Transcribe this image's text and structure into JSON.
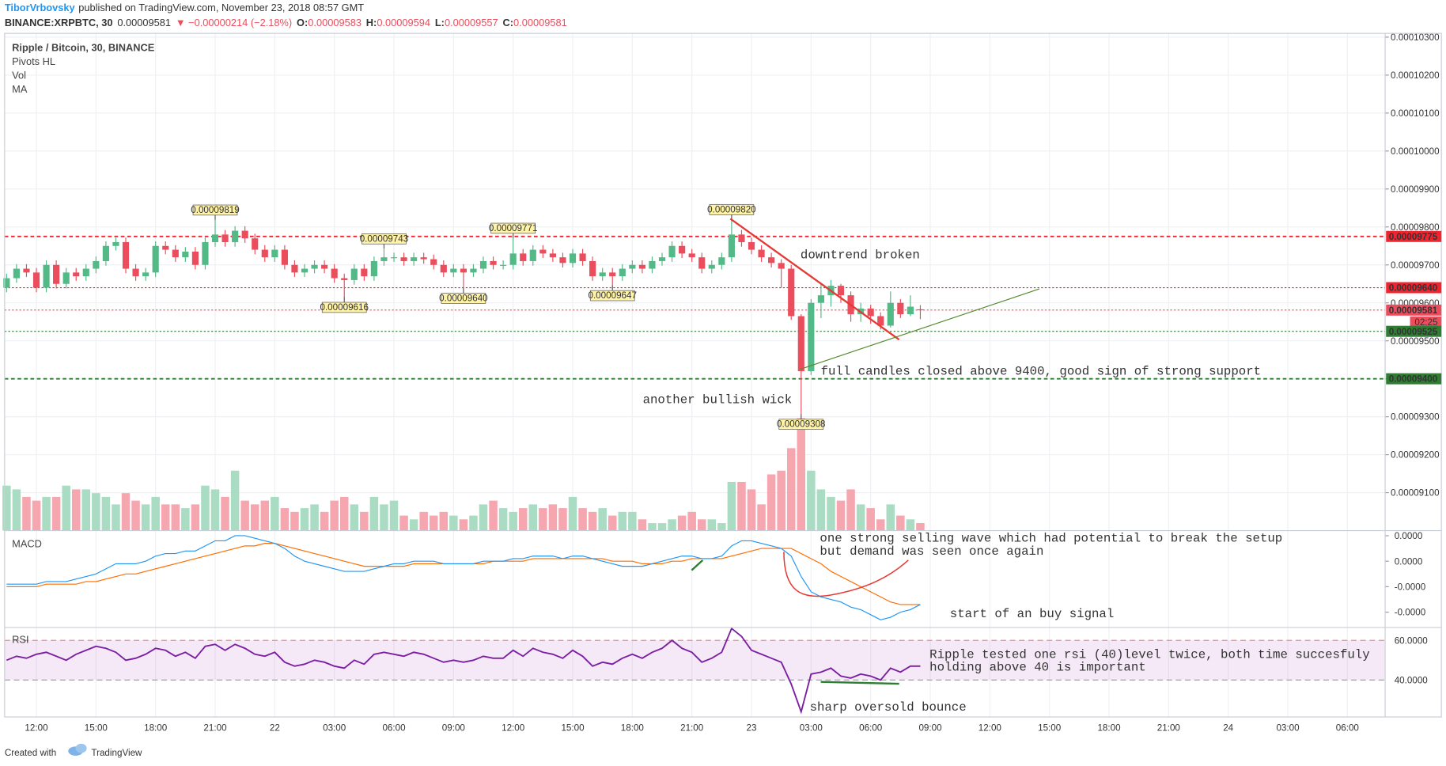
{
  "header": {
    "author": "TiborVrbovsky",
    "published": "published on TradingView.com, November 23, 2018 08:57 GMT",
    "symbol": "BINANCE:XRPBTC, 30",
    "last": "0.00009581",
    "change": "▼ −0.00000214 (−2.18%)",
    "o_key": "O:",
    "o": "0.00009583",
    "h_key": "H:",
    "h": "0.00009594",
    "l_key": "L:",
    "l": "0.00009557",
    "c_key": "C:",
    "c": "0.00009581"
  },
  "legend": [
    "Ripple / Bitcoin, 30, BINANCE",
    "Pivots HL",
    "Vol",
    "MA"
  ],
  "annotations": [
    "downtrend broken",
    "full candles closed above 9400, good sign of strong support",
    "another bullish wick",
    "one strong selling wave which had potential to break the setup",
    "but demand was seen once again",
    "start of an buy signal",
    "Ripple tested one rsi (40)level twice, both time succesfuly",
    "holding above 40 is important",
    "sharp oversold bounce"
  ],
  "footer": {
    "created": "Created with",
    "brand": "TradingView"
  },
  "chart_data": {
    "type": "candlestick",
    "xlim": [
      -0.2,
      138.8
    ],
    "xticks": [
      {
        "value": 3,
        "label": "12:00"
      },
      {
        "value": 9,
        "label": "15:00"
      },
      {
        "value": 15,
        "label": "18:00"
      },
      {
        "value": 21,
        "label": "21:00"
      },
      {
        "value": 27,
        "label": "22"
      },
      {
        "value": 33,
        "label": "03:00"
      },
      {
        "value": 39,
        "label": "06:00"
      },
      {
        "value": 45,
        "label": "09:00"
      },
      {
        "value": 51,
        "label": "12:00"
      },
      {
        "value": 57,
        "label": "15:00"
      },
      {
        "value": 63,
        "label": "18:00"
      },
      {
        "value": 69,
        "label": "21:00"
      },
      {
        "value": 75,
        "label": "23"
      },
      {
        "value": 81,
        "label": "03:00"
      },
      {
        "value": 87,
        "label": "06:00"
      },
      {
        "value": 93,
        "label": "09:00"
      },
      {
        "value": 99,
        "label": "12:00"
      },
      {
        "value": 105,
        "label": "15:00"
      },
      {
        "value": 111,
        "label": "18:00"
      },
      {
        "value": 117,
        "label": "21:00"
      },
      {
        "value": 123,
        "label": "24"
      },
      {
        "value": 129,
        "label": "03:00"
      },
      {
        "value": 135,
        "label": "06:00"
      }
    ],
    "ylim": [
      9e-05,
      0.0001031
    ],
    "yticks": [
      {
        "value": 0.000103,
        "label": "0.00010300"
      },
      {
        "value": 0.000102,
        "label": "0.00010200"
      },
      {
        "value": 0.000101,
        "label": "0.00010100"
      },
      {
        "value": 0.0001,
        "label": "0.00010000"
      },
      {
        "value": 9.9e-05,
        "label": "0.00009900"
      },
      {
        "value": 9.8e-05,
        "label": "0.00009800"
      },
      {
        "value": 9.7e-05,
        "label": "0.00009700"
      },
      {
        "value": 9.6e-05,
        "label": "0.00009600"
      },
      {
        "value": 9.5e-05,
        "label": "0.00009500"
      },
      {
        "value": 9.4e-05,
        "label": "0.00009400"
      },
      {
        "value": 9.3e-05,
        "label": "0.00009300"
      },
      {
        "value": 9.2e-05,
        "label": "0.00009200"
      },
      {
        "value": 9.1e-05,
        "label": "0.00009100"
      }
    ],
    "up_color": "#53b987",
    "down_color": "#eb4d5c",
    "open": [
      9.64e-05,
      9.665e-05,
      9.69e-05,
      9.68e-05,
      9.64e-05,
      9.7e-05,
      9.65e-05,
      9.68e-05,
      9.67e-05,
      9.69e-05,
      9.71e-05,
      9.75e-05,
      9.76e-05,
      9.69e-05,
      9.67e-05,
      9.68e-05,
      9.75e-05,
      9.74e-05,
      9.72e-05,
      9.735e-05,
      9.7e-05,
      9.76e-05,
      9.78e-05,
      9.76e-05,
      9.79e-05,
      9.77e-05,
      9.74e-05,
      9.72e-05,
      9.74e-05,
      9.7e-05,
      9.68e-05,
      9.69e-05,
      9.7e-05,
      9.69e-05,
      9.665e-05,
      9.66e-05,
      9.69e-05,
      9.67e-05,
      9.71e-05,
      9.72e-05,
      9.72e-05,
      9.71e-05,
      9.72e-05,
      9.715e-05,
      9.7e-05,
      9.68e-05,
      9.69e-05,
      9.68e-05,
      9.69e-05,
      9.71e-05,
      9.7e-05,
      9.7e-05,
      9.73e-05,
      9.71e-05,
      9.74e-05,
      9.73e-05,
      9.72e-05,
      9.705e-05,
      9.73e-05,
      9.71e-05,
      9.67e-05,
      9.68e-05,
      9.67e-05,
      9.69e-05,
      9.7e-05,
      9.69e-05,
      9.71e-05,
      9.72e-05,
      9.75e-05,
      9.73e-05,
      9.72e-05,
      9.69e-05,
      9.7e-05,
      9.72e-05,
      9.78e-05,
      9.76e-05,
      9.74e-05,
      9.72e-05,
      9.705e-05,
      9.69e-05,
      9.565e-05,
      9.42e-05,
      9.6e-05,
      9.62e-05,
      9.645e-05,
      9.62e-05,
      9.57e-05,
      9.585e-05,
      9.565e-05,
      9.54e-05,
      9.6e-05,
      9.57e-05,
      9.583e-05
    ],
    "high": [
      9.677e-05,
      9.702e-05,
      9.702e-05,
      9.692e-05,
      9.712e-05,
      9.712e-05,
      9.692e-05,
      9.692e-05,
      9.702e-05,
      9.722e-05,
      9.762e-05,
      9.772e-05,
      9.772e-05,
      9.702e-05,
      9.692e-05,
      9.762e-05,
      9.762e-05,
      9.752e-05,
      9.747e-05,
      9.747e-05,
      9.772e-05,
      9.819e-05,
      9.792e-05,
      9.802e-05,
      9.802e-05,
      9.782e-05,
      9.752e-05,
      9.752e-05,
      9.752e-05,
      9.712e-05,
      9.702e-05,
      9.712e-05,
      9.712e-05,
      9.702e-05,
      9.677e-05,
      9.702e-05,
      9.702e-05,
      9.722e-05,
      9.743e-05,
      9.732e-05,
      9.732e-05,
      9.732e-05,
      9.732e-05,
      9.727e-05,
      9.712e-05,
      9.702e-05,
      9.702e-05,
      9.702e-05,
      9.722e-05,
      9.722e-05,
      9.712e-05,
      9.771e-05,
      9.742e-05,
      9.752e-05,
      9.752e-05,
      9.742e-05,
      9.732e-05,
      9.742e-05,
      9.742e-05,
      9.722e-05,
      9.692e-05,
      9.692e-05,
      9.702e-05,
      9.712e-05,
      9.712e-05,
      9.722e-05,
      9.732e-05,
      9.762e-05,
      9.762e-05,
      9.742e-05,
      9.732e-05,
      9.712e-05,
      9.732e-05,
      9.82e-05,
      9.792e-05,
      9.772e-05,
      9.752e-05,
      9.732e-05,
      9.715e-05,
      9.7e-05,
      9.57e-05,
      9.61e-05,
      9.65e-05,
      9.66e-05,
      9.65e-05,
      9.63e-05,
      9.6e-05,
      9.595e-05,
      9.575e-05,
      9.63e-05,
      9.61e-05,
      9.62e-05,
      9.594e-05
    ],
    "low": [
      9.628e-05,
      9.653e-05,
      9.668e-05,
      9.628e-05,
      9.628e-05,
      9.638e-05,
      9.638e-05,
      9.658e-05,
      9.658e-05,
      9.678e-05,
      9.698e-05,
      9.738e-05,
      9.678e-05,
      9.658e-05,
      9.658e-05,
      9.668e-05,
      9.728e-05,
      9.708e-05,
      9.708e-05,
      9.688e-05,
      9.688e-05,
      9.748e-05,
      9.748e-05,
      9.748e-05,
      9.758e-05,
      9.728e-05,
      9.708e-05,
      9.708e-05,
      9.688e-05,
      9.668e-05,
      9.668e-05,
      9.678e-05,
      9.678e-05,
      9.653e-05,
      9.616e-05,
      9.648e-05,
      9.658e-05,
      9.658e-05,
      9.698e-05,
      9.708e-05,
      9.698e-05,
      9.698e-05,
      9.703e-05,
      9.688e-05,
      9.668e-05,
      9.668e-05,
      9.64e-05,
      9.668e-05,
      9.678e-05,
      9.688e-05,
      9.688e-05,
      9.688e-05,
      9.698e-05,
      9.698e-05,
      9.718e-05,
      9.708e-05,
      9.693e-05,
      9.693e-05,
      9.698e-05,
      9.658e-05,
      9.658e-05,
      9.647e-05,
      9.658e-05,
      9.678e-05,
      9.678e-05,
      9.678e-05,
      9.698e-05,
      9.708e-05,
      9.718e-05,
      9.708e-05,
      9.678e-05,
      9.678e-05,
      9.688e-05,
      9.708e-05,
      9.748e-05,
      9.728e-05,
      9.708e-05,
      9.693e-05,
      9.64e-05,
      9.555e-05,
      9.308e-05,
      9.41e-05,
      9.56e-05,
      9.59e-05,
      9.6e-05,
      9.55e-05,
      9.55e-05,
      9.545e-05,
      9.53e-05,
      9.535e-05,
      9.56e-05,
      9.565e-05,
      9.557e-05
    ],
    "close": [
      9.665e-05,
      9.69e-05,
      9.68e-05,
      9.64e-05,
      9.7e-05,
      9.65e-05,
      9.68e-05,
      9.67e-05,
      9.69e-05,
      9.71e-05,
      9.75e-05,
      9.76e-05,
      9.69e-05,
      9.67e-05,
      9.68e-05,
      9.75e-05,
      9.74e-05,
      9.72e-05,
      9.735e-05,
      9.7e-05,
      9.76e-05,
      9.78e-05,
      9.76e-05,
      9.79e-05,
      9.77e-05,
      9.74e-05,
      9.72e-05,
      9.74e-05,
      9.7e-05,
      9.68e-05,
      9.69e-05,
      9.7e-05,
      9.69e-05,
      9.665e-05,
      9.66e-05,
      9.69e-05,
      9.67e-05,
      9.71e-05,
      9.72e-05,
      9.72e-05,
      9.71e-05,
      9.72e-05,
      9.715e-05,
      9.7e-05,
      9.68e-05,
      9.69e-05,
      9.68e-05,
      9.69e-05,
      9.71e-05,
      9.7e-05,
      9.7e-05,
      9.73e-05,
      9.71e-05,
      9.74e-05,
      9.73e-05,
      9.72e-05,
      9.705e-05,
      9.73e-05,
      9.71e-05,
      9.67e-05,
      9.68e-05,
      9.67e-05,
      9.69e-05,
      9.7e-05,
      9.69e-05,
      9.71e-05,
      9.72e-05,
      9.75e-05,
      9.73e-05,
      9.72e-05,
      9.69e-05,
      9.7e-05,
      9.72e-05,
      9.78e-05,
      9.76e-05,
      9.74e-05,
      9.72e-05,
      9.705e-05,
      9.69e-05,
      9.565e-05,
      9.42e-05,
      9.6e-05,
      9.62e-05,
      9.645e-05,
      9.62e-05,
      9.57e-05,
      9.585e-05,
      9.565e-05,
      9.54e-05,
      9.6e-05,
      9.57e-05,
      9.59e-05,
      9.581e-05
    ],
    "volume": [
      60,
      55,
      45,
      40,
      45,
      45,
      60,
      55,
      55,
      50,
      45,
      35,
      50,
      40,
      35,
      45,
      35,
      35,
      30,
      35,
      60,
      55,
      45,
      80,
      40,
      35,
      40,
      45,
      30,
      25,
      30,
      35,
      25,
      40,
      45,
      35,
      25,
      45,
      35,
      40,
      20,
      15,
      25,
      20,
      25,
      20,
      15,
      20,
      35,
      40,
      30,
      25,
      30,
      35,
      30,
      35,
      30,
      45,
      30,
      25,
      30,
      20,
      25,
      25,
      15,
      10,
      10,
      15,
      20,
      25,
      15,
      15,
      10,
      65,
      65,
      55,
      35,
      75,
      80,
      110,
      150,
      80,
      55,
      45,
      40,
      55,
      35,
      30,
      15,
      35,
      20,
      15,
      10
    ],
    "vlim": [
      0,
      160
    ],
    "volume_up_color": "#a9dcc3",
    "volume_down_color": "#f5a6ae",
    "pivots": [
      {
        "x": 21,
        "value": 9.819e-05,
        "label": "0.00009819",
        "kind": "high"
      },
      {
        "x": 38,
        "value": 9.743e-05,
        "label": "0.00009743",
        "kind": "high"
      },
      {
        "x": 51,
        "value": 9.771e-05,
        "label": "0.00009771",
        "kind": "high"
      },
      {
        "x": 73,
        "value": 9.82e-05,
        "label": "0.00009820",
        "kind": "high"
      },
      {
        "x": 34,
        "value": 9.616e-05,
        "label": "0.00009616",
        "kind": "low"
      },
      {
        "x": 46,
        "value": 9.64e-05,
        "label": "0.00009640",
        "kind": "low"
      },
      {
        "x": 61,
        "value": 9.647e-05,
        "label": "0.00009647",
        "kind": "low"
      },
      {
        "x": 80,
        "value": 9.308e-05,
        "label": "0.00009308",
        "kind": "low"
      }
    ],
    "levels": [
      {
        "value": 9.775e-05,
        "label": "0.00009775",
        "color": "#f0242f",
        "style": "dashed"
      },
      {
        "value": 9.64e-05,
        "label": "0.00009640",
        "color": "#f0242f",
        "style": "dotted"
      },
      {
        "value": 9.581e-05,
        "label": "0.00009581",
        "color": "#eb4d5c",
        "style": "dotted"
      },
      {
        "value": 9.525e-05,
        "label": "0.00009525",
        "color": "#2e7d32",
        "style": "dotted"
      },
      {
        "value": 9.4e-05,
        "label": "0.00009400",
        "color": "#2e7d32",
        "style": "dashed"
      }
    ],
    "countdown": "02:25",
    "macd": {
      "title": "MACD",
      "ylim": [
        -2.6e-06,
        1.2e-06
      ],
      "yticks": [
        {
          "value": 1e-06,
          "label": "0.0000"
        },
        {
          "value": 0,
          "label": "0.0000"
        },
        {
          "value": -1e-06,
          "label": "-0.0000"
        },
        {
          "value": -2e-06,
          "label": "-0.0000"
        }
      ],
      "line": {
        "color": "#2196f3",
        "values": [
          -9e-07,
          -9e-07,
          -9e-07,
          -9e-07,
          -8e-07,
          -8e-07,
          -8e-07,
          -7e-07,
          -6e-07,
          -5e-07,
          -3e-07,
          -1e-07,
          -1e-07,
          -1e-07,
          0,
          2e-07,
          3e-07,
          3e-07,
          4e-07,
          4e-07,
          6e-07,
          8e-07,
          8e-07,
          1e-06,
          1e-06,
          9e-07,
          8e-07,
          7e-07,
          5e-07,
          2e-07,
          0,
          -1e-07,
          -2e-07,
          -3e-07,
          -4e-07,
          -4e-07,
          -4e-07,
          -3e-07,
          -2e-07,
          -1e-07,
          -1e-07,
          0,
          0,
          0,
          -1e-07,
          -1e-07,
          -1e-07,
          -1e-07,
          0,
          0,
          0,
          1e-07,
          1e-07,
          2e-07,
          2e-07,
          2e-07,
          1e-07,
          2e-07,
          2e-07,
          1e-07,
          0,
          -1e-07,
          -2e-07,
          -2e-07,
          -2e-07,
          -1e-07,
          0,
          1e-07,
          2e-07,
          2e-07,
          1e-07,
          1e-07,
          2e-07,
          6e-07,
          8e-07,
          8e-07,
          7e-07,
          6e-07,
          5e-07,
          2e-07,
          -6e-07,
          -1.2e-06,
          -1.4e-06,
          -1.5e-06,
          -1.6e-06,
          -1.8e-06,
          -1.9e-06,
          -2.1e-06,
          -2.3e-06,
          -2.2e-06,
          -2e-06,
          -1.9e-06,
          -1.7e-06
        ]
      },
      "signal": {
        "color": "#ff6d00",
        "values": [
          -1e-06,
          -1e-06,
          -1e-06,
          -1e-06,
          -9e-07,
          -9e-07,
          -9e-07,
          -9e-07,
          -8e-07,
          -8e-07,
          -7e-07,
          -6e-07,
          -5e-07,
          -5e-07,
          -4e-07,
          -3e-07,
          -2e-07,
          -1e-07,
          0,
          1e-07,
          2e-07,
          3e-07,
          4e-07,
          5e-07,
          6e-07,
          6e-07,
          7e-07,
          7e-07,
          6e-07,
          5e-07,
          4e-07,
          3e-07,
          2e-07,
          1e-07,
          0,
          -1e-07,
          -2e-07,
          -2e-07,
          -2e-07,
          -2e-07,
          -2e-07,
          -1e-07,
          -1e-07,
          -1e-07,
          -1e-07,
          -1e-07,
          -1e-07,
          -1e-07,
          -1e-07,
          0,
          0,
          0,
          0,
          1e-07,
          1e-07,
          1e-07,
          1e-07,
          1e-07,
          1e-07,
          1e-07,
          1e-07,
          0,
          0,
          0,
          -1e-07,
          -1e-07,
          -1e-07,
          0,
          0,
          1e-07,
          1e-07,
          1e-07,
          1e-07,
          2e-07,
          3e-07,
          4e-07,
          5e-07,
          5e-07,
          5e-07,
          5e-07,
          3e-07,
          1e-07,
          -1e-07,
          -4e-07,
          -6e-07,
          -8e-07,
          -1e-06,
          -1.2e-06,
          -1.4e-06,
          -1.6e-06,
          -1.7e-06,
          -1.7e-06,
          -1.7e-06
        ]
      }
    },
    "rsi": {
      "title": "RSI",
      "ylim": [
        21.4,
        66.5
      ],
      "yticks": [
        {
          "value": 60,
          "label": "60.0000"
        },
        {
          "value": 40,
          "label": "40.0000"
        }
      ],
      "color": "#7b1fa2",
      "values": [
        50,
        52,
        51,
        53,
        54,
        52,
        50,
        53,
        55,
        57,
        56,
        54,
        50,
        51,
        53,
        56,
        55,
        52,
        54,
        51,
        57,
        58,
        55,
        58,
        56,
        53,
        52,
        54,
        49,
        47,
        48,
        50,
        49,
        47,
        46,
        50,
        48,
        53,
        54,
        53,
        52,
        54,
        53,
        51,
        49,
        50,
        49,
        50,
        52,
        51,
        51,
        55,
        52,
        56,
        54,
        53,
        51,
        55,
        52,
        47,
        49,
        48,
        51,
        53,
        51,
        54,
        56,
        60,
        56,
        54,
        49,
        51,
        54,
        66,
        62,
        55,
        53,
        51,
        49,
        38,
        24,
        43,
        44,
        46,
        42,
        41,
        43,
        42,
        40,
        46,
        44,
        47,
        47
      ]
    }
  }
}
